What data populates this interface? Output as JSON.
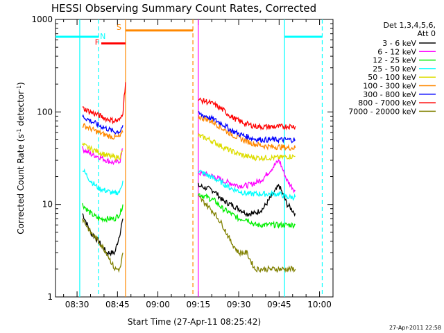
{
  "chart_data": {
    "type": "line",
    "title": "HESSI Observing Summary Count Rates, Corrected",
    "xlabel": "Start Time (27-Apr-11 08:25:42)",
    "ylabel": "Corrected Count Rate (s",
    "ylabel_sup1": "-1",
    "ylabel_mid": " detector",
    "ylabel_sup2": "-1",
    "ylabel_end": ")",
    "yscale": "log",
    "ylim": [
      1,
      1000
    ],
    "xlim": [
      "08:22",
      "10:05"
    ],
    "x_ticks": [
      "08:30",
      "08:45",
      "09:00",
      "09:15",
      "09:30",
      "09:45",
      "10:00"
    ],
    "y_ticks": [
      "1",
      "10",
      "100",
      "1000"
    ],
    "legend_header": [
      "Det 1,3,4,5,6,",
      "Att 0"
    ],
    "legend_placement": "right",
    "timestamp": "27-Apr-2011 22:58",
    "x": [
      "08:32",
      "08:35",
      "08:38",
      "08:41",
      "08:44",
      "08:46",
      "08:47",
      "08:48",
      "08:49",
      "09:15",
      "09:18",
      "09:21",
      "09:24",
      "09:27",
      "09:30",
      "09:33",
      "09:36",
      "09:39",
      "09:42",
      "09:45",
      "09:48",
      "09:51"
    ],
    "series": [
      {
        "name": "3 - 6 keV",
        "color": "#000000",
        "values": [
          8,
          5,
          4,
          3,
          3,
          5,
          7,
          null,
          null,
          16,
          15,
          14,
          11,
          10,
          9,
          8,
          8,
          9,
          12,
          16,
          10,
          8
        ]
      },
      {
        "name": "6 - 12 keV",
        "color": "#ff00ff",
        "values": [
          40,
          35,
          33,
          30,
          28,
          30,
          40,
          null,
          null,
          22,
          21,
          20,
          18,
          17,
          16,
          16,
          17,
          19,
          24,
          30,
          18,
          14
        ]
      },
      {
        "name": "12 - 25 keV",
        "color": "#00ee00",
        "values": [
          10,
          8,
          7,
          7,
          7,
          8,
          10,
          null,
          null,
          13,
          12,
          11,
          9,
          8,
          7,
          7,
          6,
          6,
          6,
          6,
          6,
          6
        ]
      },
      {
        "name": "25 - 50 keV",
        "color": "#00ffff",
        "values": [
          24,
          18,
          15,
          14,
          13,
          14,
          18,
          null,
          null,
          23,
          21,
          19,
          17,
          15,
          14,
          13,
          13,
          13,
          13,
          13,
          12,
          12
        ]
      },
      {
        "name": "50 - 100 keV",
        "color": "#dddd00",
        "values": [
          44,
          40,
          37,
          34,
          32,
          33,
          38,
          null,
          null,
          55,
          52,
          47,
          42,
          38,
          35,
          33,
          32,
          32,
          32,
          32,
          33,
          33
        ]
      },
      {
        "name": "100 - 300 keV",
        "color": "#ff8800",
        "values": [
          72,
          66,
          60,
          56,
          53,
          54,
          60,
          null,
          null,
          88,
          84,
          76,
          66,
          58,
          52,
          48,
          45,
          43,
          42,
          42,
          41,
          41
        ]
      },
      {
        "name": "300 - 800 keV",
        "color": "#0000ff",
        "values": [
          90,
          80,
          72,
          66,
          61,
          62,
          72,
          null,
          null,
          95,
          90,
          82,
          74,
          64,
          58,
          54,
          51,
          50,
          50,
          50,
          50,
          50
        ]
      },
      {
        "name": "800 - 7000 keV",
        "color": "#ff0000",
        "values": [
          110,
          100,
          92,
          84,
          80,
          82,
          100,
          210,
          null,
          135,
          130,
          120,
          106,
          90,
          80,
          74,
          70,
          69,
          69,
          69,
          70,
          70
        ]
      },
      {
        "name": "7000 - 20000 keV",
        "color": "#808000",
        "values": [
          7,
          5,
          4,
          3,
          2,
          2,
          3,
          null,
          null,
          12,
          10,
          8,
          6,
          4,
          3,
          3,
          2,
          2,
          2,
          2,
          2,
          2
        ]
      }
    ],
    "vertical_markers": [
      {
        "time": "08:31",
        "color": "#00ffff",
        "style": "solid"
      },
      {
        "time": "08:38",
        "color": "#00ffff",
        "style": "dashed"
      },
      {
        "time": "08:48",
        "color": "#ff8800",
        "style": "solid"
      },
      {
        "time": "09:13",
        "color": "#ff8800",
        "style": "dashed"
      },
      {
        "time": "09:15",
        "color": "#ff00ff",
        "style": "solid"
      },
      {
        "time": "09:47",
        "color": "#00ffff",
        "style": "solid"
      },
      {
        "time": "10:01",
        "color": "#00ffff",
        "style": "dashed"
      }
    ],
    "flag_bars": [
      {
        "label": "F",
        "color": "#ff0000",
        "start": "08:39",
        "end": "08:48",
        "level": 550
      },
      {
        "label": "N",
        "color": "#00ffff",
        "start": "08:22",
        "end": "08:38",
        "level": 650
      },
      {
        "label": "S",
        "color": "#ff8800",
        "start": "08:48",
        "end": "09:13",
        "level": 760
      },
      {
        "label": "",
        "color": "#00ffff",
        "start": "09:47",
        "end": "10:01",
        "level": 650
      }
    ]
  }
}
